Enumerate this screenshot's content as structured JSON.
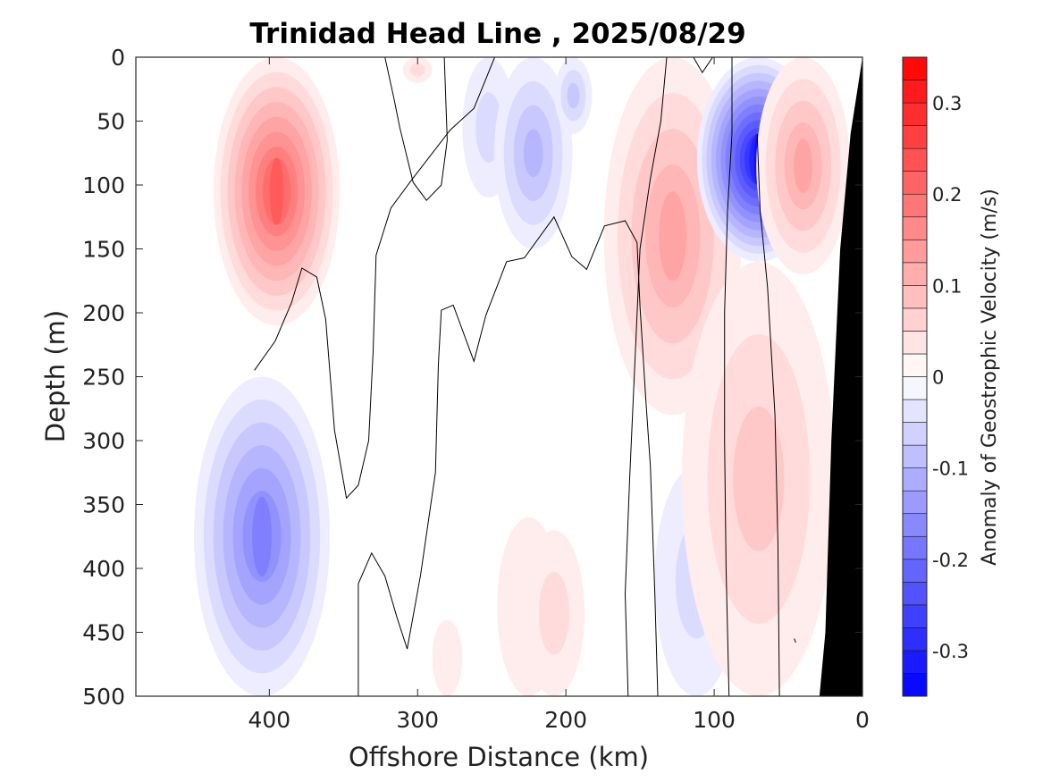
{
  "chart_data": {
    "type": "heatmap",
    "title": "Trinidad Head Line , 2025/08/29",
    "xlabel": "Offshore Distance (km)",
    "ylabel": "Depth (m)",
    "xlim": [
      490,
      0
    ],
    "ylim": [
      0,
      500
    ],
    "x_reversed": true,
    "y_reversed": true,
    "x_ticks": [
      400,
      300,
      200,
      100,
      0
    ],
    "y_ticks": [
      0,
      50,
      100,
      150,
      200,
      250,
      300,
      350,
      400,
      450,
      500
    ],
    "colorbar": {
      "label": "Anomaly of Geostrophic Velocity (m/s)",
      "range": [
        -0.35,
        0.35
      ],
      "ticks": [
        0.3,
        0.2,
        0.1,
        0,
        -0.1,
        -0.2,
        -0.3
      ],
      "levels": [
        -0.35,
        -0.325,
        -0.3,
        -0.275,
        -0.25,
        -0.225,
        -0.2,
        -0.175,
        -0.15,
        -0.125,
        -0.1,
        -0.075,
        -0.05,
        -0.025,
        0,
        0.025,
        0.05,
        0.075,
        0.1,
        0.125,
        0.15,
        0.175,
        0.2,
        0.225,
        0.25,
        0.275,
        0.3,
        0.325,
        0.35
      ],
      "colormap": "blue-white-red",
      "negative_color": "#0000ff",
      "positive_color": "#ff0000"
    },
    "data_extent_km": [
      410,
      0
    ],
    "bathymetry": {
      "color": "#000000",
      "surface_km": 0,
      "bottom_km": 29,
      "depth_points": [
        [
          0,
          0
        ],
        [
          8,
          60
        ],
        [
          15,
          150
        ],
        [
          21,
          300
        ],
        [
          25,
          450
        ],
        [
          29,
          500
        ]
      ]
    },
    "velocity_features": [
      {
        "center_km": 395,
        "depth_range": [
          0,
          210
        ],
        "anomaly": 0.22
      },
      {
        "center_km": 405,
        "depth_range": [
          250,
          500
        ],
        "anomaly": -0.18
      },
      {
        "center_km": 300,
        "depth_range": [
          0,
          20
        ],
        "anomaly": 0.05
      },
      {
        "center_km": 252,
        "depth_range": [
          0,
          110
        ],
        "anomaly": -0.04
      },
      {
        "center_km": 222,
        "depth_range": [
          0,
          150
        ],
        "anomaly": -0.09
      },
      {
        "center_km": 195,
        "depth_range": [
          0,
          60
        ],
        "anomaly": -0.07
      },
      {
        "center_km": 128,
        "depth_range": [
          0,
          280
        ],
        "anomaly": 0.12
      },
      {
        "center_km": 70,
        "depth_range": [
          0,
          160
        ],
        "anomaly": -0.32
      },
      {
        "center_km": 112,
        "depth_range": [
          320,
          500
        ],
        "anomaly": -0.05
      },
      {
        "center_km": 70,
        "depth_range": [
          160,
          500
        ],
        "anomaly": 0.07
      },
      {
        "center_km": 40,
        "depth_range": [
          0,
          170
        ],
        "anomaly": 0.13
      },
      {
        "center_km": 225,
        "depth_range": [
          360,
          500
        ],
        "anomaly": 0.03
      },
      {
        "center_km": 208,
        "depth_range": [
          370,
          500
        ],
        "anomaly": 0.04
      },
      {
        "center_km": 280,
        "depth_range": [
          440,
          500
        ],
        "anomaly": 0.03
      }
    ],
    "zero_contours": [
      [
        [
          410,
          245
        ],
        [
          396,
          222
        ],
        [
          385,
          192
        ],
        [
          378,
          165
        ],
        [
          368,
          172
        ],
        [
          362,
          205
        ],
        [
          356,
          292
        ],
        [
          348,
          345
        ],
        [
          340,
          335
        ],
        [
          333,
          300
        ],
        [
          330,
          230
        ],
        [
          328,
          155
        ],
        [
          318,
          118
        ],
        [
          304,
          96
        ],
        [
          278,
          57
        ],
        [
          262,
          40
        ],
        [
          248,
          0
        ]
      ],
      [
        [
          340,
          500
        ],
        [
          340,
          412
        ],
        [
          331,
          388
        ],
        [
          322,
          406
        ],
        [
          314,
          438
        ],
        [
          307,
          463
        ],
        [
          298,
          405
        ],
        [
          288,
          325
        ],
        [
          286,
          240
        ],
        [
          284,
          198
        ],
        [
          276,
          194
        ],
        [
          262,
          238
        ],
        [
          254,
          202
        ],
        [
          240,
          160
        ],
        [
          228,
          157
        ],
        [
          208,
          125
        ],
        [
          196,
          156
        ],
        [
          186,
          166
        ],
        [
          174,
          132
        ],
        [
          160,
          128
        ],
        [
          152,
          145
        ],
        [
          150,
          195
        ],
        [
          146,
          270
        ],
        [
          143,
          320
        ],
        [
          140,
          420
        ],
        [
          138,
          500
        ]
      ],
      [
        [
          322,
          0
        ],
        [
          316,
          32
        ],
        [
          312,
          55
        ],
        [
          303,
          98
        ],
        [
          294,
          112
        ],
        [
          284,
          100
        ],
        [
          280,
          65
        ],
        [
          282,
          0
        ]
      ],
      [
        [
          158,
          500
        ],
        [
          160,
          420
        ],
        [
          157,
          330
        ],
        [
          150,
          150
        ],
        [
          143,
          95
        ],
        [
          136,
          50
        ],
        [
          132,
          0
        ]
      ],
      [
        [
          114,
          0
        ],
        [
          108,
          12
        ],
        [
          101,
          0
        ]
      ],
      [
        [
          90,
          500
        ],
        [
          92,
          400
        ],
        [
          93,
          300
        ],
        [
          93,
          200
        ],
        [
          91,
          120
        ],
        [
          88,
          60
        ],
        [
          88,
          0
        ]
      ],
      [
        [
          56,
          500
        ],
        [
          57,
          380
        ],
        [
          59,
          280
        ],
        [
          64,
          180
        ],
        [
          69,
          120
        ],
        [
          71,
          60
        ]
      ],
      [
        [
          46,
          455
        ],
        [
          45,
          458
        ]
      ]
    ]
  }
}
